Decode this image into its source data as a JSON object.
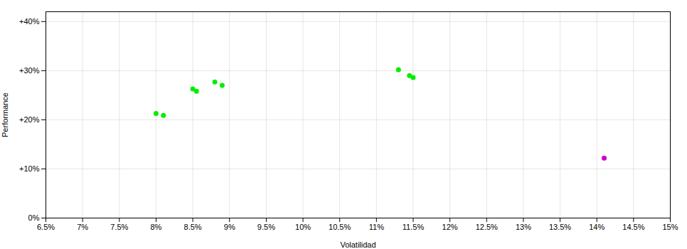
{
  "chart_data": {
    "type": "scatter",
    "xlabel": "Volatilidad",
    "ylabel": "Performance",
    "series": [
      {
        "color": "#00ee00",
        "x": [
          0.08,
          0.081,
          0.085,
          0.0855,
          0.088,
          0.089,
          0.113,
          0.1145,
          0.115
        ],
        "values": [
          0.213,
          0.209,
          0.263,
          0.258,
          0.277,
          0.27,
          0.302,
          0.29,
          0.286
        ]
      },
      {
        "color": "#cc00cc",
        "x": [
          0.141
        ],
        "values": [
          0.122
        ]
      }
    ],
    "xlim": [
      0.065,
      0.15
    ],
    "ylim": [
      0.0,
      0.42
    ],
    "xticks": [
      {
        "value": 0.065,
        "label": "6.5%"
      },
      {
        "value": 0.07,
        "label": "7%"
      },
      {
        "value": 0.075,
        "label": "7.5%"
      },
      {
        "value": 0.08,
        "label": "8%"
      },
      {
        "value": 0.085,
        "label": "8.5%"
      },
      {
        "value": 0.09,
        "label": "9%"
      },
      {
        "value": 0.095,
        "label": "9.5%"
      },
      {
        "value": 0.1,
        "label": "10%"
      },
      {
        "value": 0.105,
        "label": "10.5%"
      },
      {
        "value": 0.11,
        "label": "11%"
      },
      {
        "value": 0.115,
        "label": "11.5%"
      },
      {
        "value": 0.12,
        "label": "12%"
      },
      {
        "value": 0.125,
        "label": "12.5%"
      },
      {
        "value": 0.13,
        "label": "13%"
      },
      {
        "value": 0.135,
        "label": "13.5%"
      },
      {
        "value": 0.14,
        "label": "14%"
      },
      {
        "value": 0.145,
        "label": "14.5%"
      },
      {
        "value": 0.15,
        "label": "15%"
      }
    ],
    "yticks": [
      {
        "value": 0.0,
        "label": "0%"
      },
      {
        "value": 0.1,
        "label": "+10%"
      },
      {
        "value": 0.2,
        "label": "+20%"
      },
      {
        "value": 0.3,
        "label": "+30%"
      },
      {
        "value": 0.4,
        "label": "+40%"
      }
    ],
    "grid": true
  }
}
